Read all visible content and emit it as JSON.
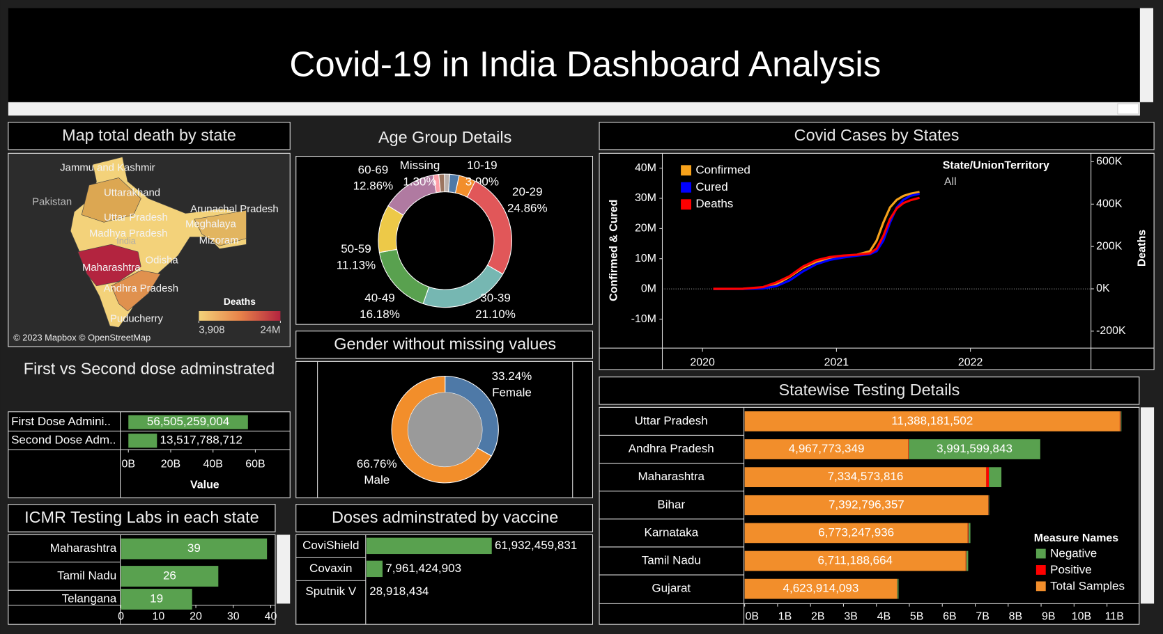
{
  "title": "Covid-19 in India Dashboard Analysis",
  "chart_data": [
    {
      "type": "map",
      "title": "Map total death by state",
      "places": [
        "Jammu and Kashmir",
        "Pakistan",
        "Uttarakhand",
        "Uttar Pradesh",
        "Madhya Pradesh",
        "India",
        "Maharashtra",
        "Odisha",
        "Andhra Pradesh",
        "Puducherry",
        "Arunachal Pradesh",
        "Meghalaya",
        "Mizoram"
      ],
      "legend_title": "Deaths",
      "colorbar_ticks": [
        {
          "value": 3908,
          "label": "3,908"
        },
        {
          "value": 24000000,
          "label": "24M"
        }
      ],
      "colors": [
        "#f3d27a",
        "#b3243f"
      ],
      "attribution": "© 2023 Mapbox © OpenStreetMap"
    },
    {
      "type": "pie",
      "title": "Age Group Details",
      "categories": [
        null,
        "10-19",
        "20-29",
        "30-39",
        "40-49",
        "50-59",
        "60-69",
        "Missing",
        null,
        null
      ],
      "values": [
        2.2,
        3.9,
        24.86,
        21.1,
        16.18,
        11.13,
        12.86,
        1.3,
        1.3,
        1.2
      ],
      "value_labels": [
        null,
        "3.90%",
        "24.86%",
        "21.10%",
        "16.18%",
        "11.13%",
        "12.86%",
        "1.30%",
        null,
        null
      ],
      "colors": [
        "#4e79a7",
        "#f28e2b",
        "#e15759",
        "#76b7b2",
        "#59a14f",
        "#edc948",
        "#b07aa1",
        "#ff9da7",
        "#9c755f",
        "#bab0ac"
      ]
    },
    {
      "type": "pie",
      "title": "Gender without missing values",
      "categories": [
        "Female",
        "Male"
      ],
      "values": [
        33.24,
        66.76
      ],
      "value_labels": [
        "33.24%",
        "66.76%"
      ],
      "colors": [
        "#4e79a7",
        "#f28e2b"
      ]
    },
    {
      "type": "bar",
      "title": "First vs Second dose adminstrated",
      "categories": [
        "First Dose Admini..",
        "Second Dose Adm.."
      ],
      "values": [
        56505259004,
        13517788712
      ],
      "value_labels": [
        "56,505,259,004",
        "13,517,788,712"
      ],
      "color": "#59a14f",
      "xlim": [
        0,
        75000000000
      ],
      "xticks": [
        {
          "value": 0,
          "label": "0B"
        },
        {
          "value": 20000000000,
          "label": "20B"
        },
        {
          "value": 40000000000,
          "label": "40B"
        },
        {
          "value": 60000000000,
          "label": "60B"
        }
      ],
      "x_label": "Value"
    },
    {
      "type": "bar",
      "title": "ICMR Testing Labs in each state",
      "categories": [
        "Maharashtra",
        "Tamil Nadu",
        "Telangana"
      ],
      "values": [
        39,
        26,
        19
      ],
      "color": "#59a14f",
      "xlim": [
        0,
        41
      ],
      "xticks": [
        0,
        10,
        20,
        30,
        40
      ]
    },
    {
      "type": "bar",
      "title": "Doses adminstrated by vaccine",
      "categories": [
        "CoviShield",
        "Covaxin",
        "Sputnik V"
      ],
      "values": [
        61932459831,
        7961424903,
        28918434
      ],
      "value_labels": [
        "61,932,459,831",
        "7,961,424,903",
        "28,918,434"
      ],
      "color": "#59a14f"
    },
    {
      "type": "line",
      "title": "Covid Cases by States",
      "x": [
        2020.08,
        2020.3,
        2020.45,
        2020.55,
        2020.65,
        2020.75,
        2020.85,
        2020.95,
        2021.05,
        2021.15,
        2021.25,
        2021.3,
        2021.35,
        2021.4,
        2021.45,
        2021.5,
        2021.55,
        2021.62
      ],
      "series": [
        {
          "name": "Confirmed",
          "color": "#f7a21b",
          "values": [
            0,
            20000,
            300000,
            1500000,
            4000000,
            7000000,
            9000000,
            10200000,
            10800000,
            11300000,
            12500000,
            16000000,
            22000000,
            27000000,
            29500000,
            30800000,
            31500000,
            32100000
          ]
        },
        {
          "name": "Cured",
          "color": "#0000ff",
          "values": [
            0,
            10000,
            150000,
            900000,
            2800000,
            5800000,
            8200000,
            9600000,
            10400000,
            11000000,
            11500000,
            12500000,
            16000000,
            22000000,
            27000000,
            29500000,
            30800000,
            31500000
          ]
        },
        {
          "name": "Deaths",
          "color": "#ff0000",
          "axis": "y2",
          "values": [
            0,
            500,
            8000,
            30000,
            60000,
            105000,
            135000,
            150000,
            157000,
            161000,
            168000,
            190000,
            250000,
            330000,
            380000,
            405000,
            418000,
            430000
          ]
        }
      ],
      "xlim": [
        2019.7,
        2022.9
      ],
      "xticks": [
        2020,
        2021,
        2022
      ],
      "ylim": [
        -19600000,
        44900000
      ],
      "yticks": [
        {
          "value": -10000000,
          "label": "-10M"
        },
        {
          "value": 0,
          "label": "0M"
        },
        {
          "value": 10000000,
          "label": "10M"
        },
        {
          "value": 20000000,
          "label": "20M"
        },
        {
          "value": 30000000,
          "label": "30M"
        },
        {
          "value": 40000000,
          "label": "40M"
        }
      ],
      "y2lim": [
        -280000,
        640000
      ],
      "y2ticks": [
        {
          "value": -200000,
          "label": "-200K"
        },
        {
          "value": 0,
          "label": "0K"
        },
        {
          "value": 200000,
          "label": "200K"
        },
        {
          "value": 400000,
          "label": "400K"
        },
        {
          "value": 600000,
          "label": "600K"
        }
      ],
      "y_label": "Confirmed & Cured",
      "y2_label": "Deaths",
      "filter_title": "State/UnionTerritory",
      "filter_value": "All"
    },
    {
      "type": "stacked_bar",
      "title": "Statewise Testing Details",
      "categories": [
        "Uttar Pradesh",
        "Andhra Pradesh",
        "Maharashtra",
        "Bihar",
        "Karnataka",
        "Tamil Nadu",
        "Gujarat"
      ],
      "series": [
        {
          "name": "Total Samples",
          "color": "#f28e2b",
          "values": [
            11388181502,
            4967773349,
            7334573816,
            7392796357,
            6773247936,
            6711188664,
            4623914093
          ],
          "value_labels": [
            "11,388,181,502",
            "4,967,773,349",
            "7,334,573,816",
            "7,392,796,357",
            "6,773,247,936",
            "6,711,188,664",
            "4,623,914,093"
          ]
        },
        {
          "name": "Positive",
          "color": "#ff0000",
          "values": [
            20000000,
            15000000,
            80000000,
            10000000,
            20000000,
            15000000,
            8000000
          ]
        },
        {
          "name": "Negative",
          "color": "#59a14f",
          "values": [
            30000000,
            3991599843,
            380000000,
            20000000,
            60000000,
            60000000,
            40000000
          ],
          "value_labels": [
            null,
            "3,991,599,843",
            null,
            null,
            null,
            null,
            null
          ]
        }
      ],
      "xlim": [
        0,
        12000000000
      ],
      "xticks": [
        {
          "value": 0,
          "label": "0B"
        },
        {
          "value": 1000000000,
          "label": "1B"
        },
        {
          "value": 2000000000,
          "label": "2B"
        },
        {
          "value": 3000000000,
          "label": "3B"
        },
        {
          "value": 4000000000,
          "label": "4B"
        },
        {
          "value": 5000000000,
          "label": "5B"
        },
        {
          "value": 6000000000,
          "label": "6B"
        },
        {
          "value": 7000000000,
          "label": "7B"
        },
        {
          "value": 8000000000,
          "label": "8B"
        },
        {
          "value": 9000000000,
          "label": "9B"
        },
        {
          "value": 10000000000,
          "label": "10B"
        },
        {
          "value": 11000000000,
          "label": "11B"
        }
      ],
      "legend_title": "Measure Names"
    }
  ]
}
